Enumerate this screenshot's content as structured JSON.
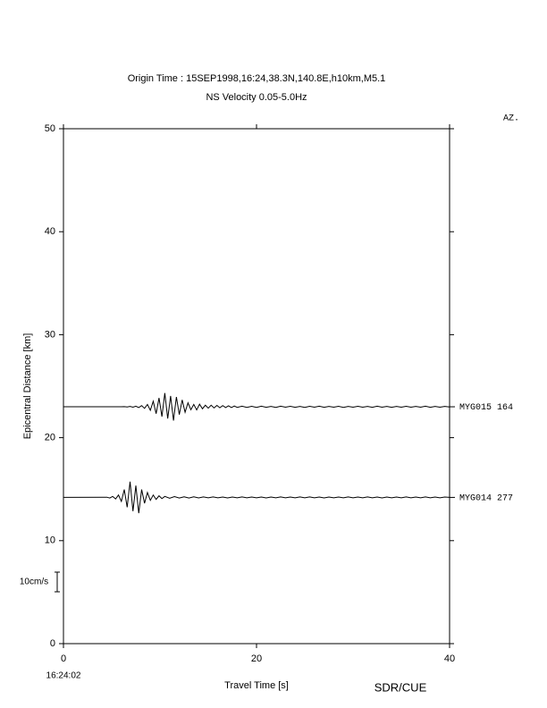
{
  "chart_data": {
    "type": "record_section",
    "title": "Origin Time : 15SEP1998,16:24,38.3N,140.8E,h10km,M5.1",
    "subtitle": "NS Velocity 0.05-5.0Hz",
    "azimuth_header": "AZ.",
    "x_label": "Travel Time [s]",
    "y_label": "Epicentral Distance [km]",
    "start_time": "16:24:02",
    "credit": "SDR/CUE",
    "xlim": [
      0,
      40
    ],
    "xticks": [
      0,
      20,
      40
    ],
    "ylim": [
      0,
      50
    ],
    "yticks": [
      0,
      10,
      20,
      30,
      40,
      50
    ],
    "scale_bar": {
      "label": "10cm/s",
      "value": 10
    },
    "color": "#000000",
    "series": [
      {
        "name": "MYG015",
        "azimuth": 164,
        "distance": 23,
        "x": [
          0,
          6,
          6.3,
          6.6,
          6.9,
          7.2,
          7.5,
          7.8,
          8.1,
          8.4,
          8.7,
          9,
          9.3,
          9.6,
          9.9,
          10.2,
          10.5,
          10.8,
          11.1,
          11.4,
          11.7,
          12,
          12.3,
          12.6,
          12.9,
          13.2,
          13.5,
          13.8,
          14.1,
          14.4,
          14.7,
          15,
          15.3,
          15.6,
          15.9,
          16.2,
          16.5,
          16.8,
          17.1,
          17.4,
          17.7,
          18,
          18.5,
          19,
          19.5,
          20,
          20.5,
          21,
          21.5,
          22,
          22.5,
          23,
          23.5,
          24,
          24.5,
          25,
          25.5,
          26,
          26.5,
          27,
          27.5,
          28,
          28.5,
          29,
          29.5,
          30,
          30.5,
          31,
          31.5,
          32,
          32.5,
          33,
          33.5,
          34,
          34.5,
          35,
          35.5,
          36,
          36.5,
          37,
          37.5,
          38,
          38.5,
          39,
          39.5,
          40
        ],
        "values": [
          0,
          0,
          0.1,
          -0.1,
          0.2,
          -0.2,
          0.3,
          -0.4,
          0.6,
          -0.8,
          1.2,
          -1.8,
          2.8,
          -3.5,
          4.5,
          -5,
          7,
          -6,
          5.5,
          -7,
          5,
          -4,
          3.5,
          -2.8,
          2,
          -1.5,
          1.2,
          -1.6,
          1.3,
          -1,
          0.8,
          -0.7,
          0.8,
          -0.6,
          0.7,
          -0.5,
          0.6,
          -0.4,
          0.5,
          -0.4,
          0.4,
          -0.3,
          0.3,
          -0.3,
          0.25,
          -0.3,
          0.3,
          -0.25,
          0.2,
          -0.3,
          0.3,
          -0.2,
          0.25,
          -0.25,
          0.2,
          -0.3,
          0.25,
          -0.2,
          0.3,
          -0.25,
          0.2,
          -0.2,
          0.25,
          -0.3,
          0.2,
          -0.2,
          0.25,
          -0.2,
          0.2,
          -0.25,
          0.3,
          -0.2,
          0.2,
          -0.25,
          0.2,
          -0.2,
          0.25,
          -0.2,
          0.2,
          -0.2,
          0.3,
          -0.25,
          0.2,
          -0.2,
          0.2,
          -0.1
        ]
      },
      {
        "name": "MYG014",
        "azimuth": 277,
        "distance": 14.2,
        "x": [
          0,
          4.5,
          4.8,
          5.1,
          5.4,
          5.7,
          6,
          6.3,
          6.6,
          6.9,
          7.2,
          7.5,
          7.8,
          8.1,
          8.4,
          8.7,
          9,
          9.3,
          9.6,
          9.9,
          10.2,
          10.5,
          11,
          11.5,
          12,
          12.5,
          13,
          13.5,
          14,
          14.5,
          15,
          15.5,
          16,
          16.5,
          17,
          17.5,
          18,
          18.5,
          19,
          19.5,
          20,
          20.5,
          21,
          21.5,
          22,
          22.5,
          23,
          23.5,
          24,
          24.5,
          25,
          25.5,
          26,
          26.5,
          27,
          27.5,
          28,
          28.5,
          29,
          29.5,
          30,
          30.5,
          31,
          31.5,
          32,
          32.5,
          33,
          33.5,
          34,
          34.5,
          35,
          35.5,
          36,
          36.5,
          37,
          37.5,
          38,
          38.5,
          39,
          39.5,
          40
        ],
        "values": [
          0,
          0.1,
          -0.3,
          0.5,
          -0.8,
          1.2,
          -2,
          4,
          -5,
          8,
          -7,
          6,
          -8,
          4,
          -3,
          2.5,
          -1.5,
          1.2,
          -1,
          0.8,
          -0.6,
          0.5,
          -0.4,
          0.4,
          -0.3,
          0.3,
          -0.3,
          0.3,
          -0.25,
          0.25,
          -0.2,
          0.25,
          -0.2,
          0.2,
          -0.25,
          0.2,
          -0.2,
          0.25,
          -0.2,
          0.2,
          -0.2,
          0.2,
          -0.25,
          0.2,
          -0.2,
          0.25,
          -0.2,
          0.2,
          -0.2,
          0.25,
          -0.2,
          0.25,
          -0.2,
          0.2,
          -0.25,
          0.2,
          -0.2,
          0.2,
          -0.2,
          0.25,
          -0.2,
          0.2,
          -0.2,
          0.25,
          -0.2,
          0.2,
          -0.25,
          0.2,
          -0.2,
          0.2,
          -0.2,
          0.25,
          -0.2,
          0.2,
          -0.2,
          0.25,
          -0.2,
          0.2,
          -0.2,
          0.2,
          0
        ]
      }
    ]
  }
}
